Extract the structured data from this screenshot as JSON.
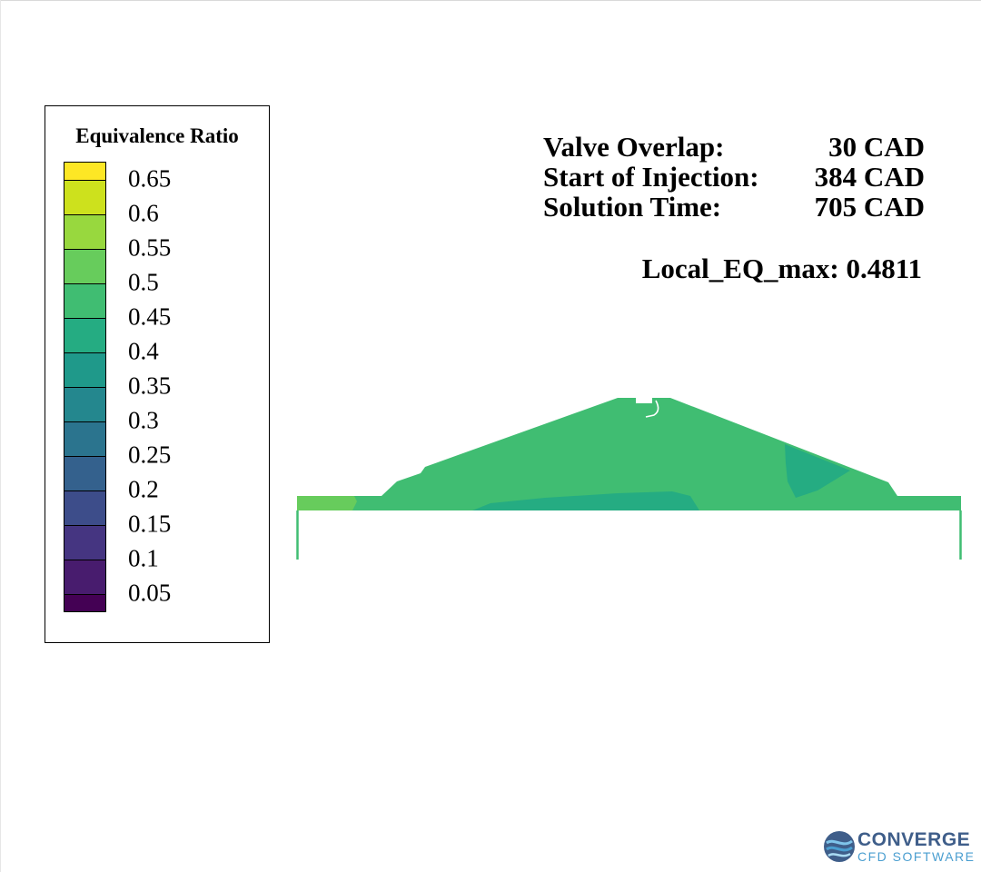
{
  "legend": {
    "title": "Equivalence Ratio",
    "ticks": [
      "0.65",
      "0.6",
      "0.55",
      "0.5",
      "0.45",
      "0.4",
      "0.35",
      "0.3",
      "0.25",
      "0.2",
      "0.15",
      "0.1",
      "0.05"
    ],
    "colors": [
      "#fde725",
      "#cde11d",
      "#98d83e",
      "#67cc5c",
      "#40bd72",
      "#25ac82",
      "#1f998a",
      "#24878e",
      "#2b748e",
      "#34618d",
      "#3d4d8a",
      "#453581",
      "#481c6e",
      "#440154"
    ]
  },
  "info": {
    "rows": [
      {
        "label": "Valve Overlap:",
        "value": "30 CAD"
      },
      {
        "label": "Start of Injection:",
        "value": "384 CAD"
      },
      {
        "label": "Solution Time:",
        "value": "705 CAD"
      }
    ],
    "local_eq_max": "Local_EQ_max: 0.4811"
  },
  "domain": {
    "main_color": "#40bd72",
    "low_color": "#25ac82",
    "high_color": "#67cc5c",
    "outline_color": "#40bd72"
  },
  "logo": {
    "name": "CONVERGE",
    "subtitle": "CFD SOFTWARE"
  }
}
